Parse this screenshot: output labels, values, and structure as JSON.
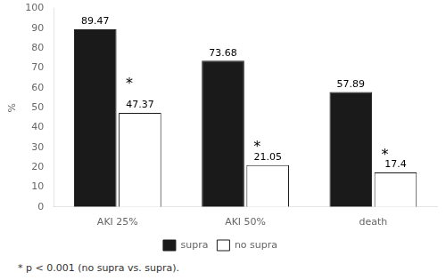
{
  "chart_data": {
    "type": "bar",
    "categories": [
      "AKI 25%",
      "AKI 50%",
      "death"
    ],
    "series": [
      {
        "name": "supra",
        "color": "#1a1a1a",
        "values": [
          89.47,
          73.68,
          57.89
        ]
      },
      {
        "name": "no supra",
        "color": "#ffffff",
        "values": [
          47.37,
          21.05,
          17.4
        ]
      }
    ],
    "ylabel": "%",
    "ylim": [
      0,
      100
    ],
    "yticks": [
      0,
      10,
      20,
      30,
      40,
      50,
      60,
      70,
      80,
      90,
      100
    ],
    "grid": false,
    "legend": "bottom",
    "data_labels": true,
    "annotations": [
      {
        "text": "*",
        "x": "AKI 25%",
        "y": 60
      },
      {
        "text": "*",
        "x": "AKI 50%",
        "y": 28
      },
      {
        "text": "*",
        "x": "death",
        "y": 24
      }
    ],
    "footnote": "* p < 0.001 (no supra vs. supra)."
  }
}
